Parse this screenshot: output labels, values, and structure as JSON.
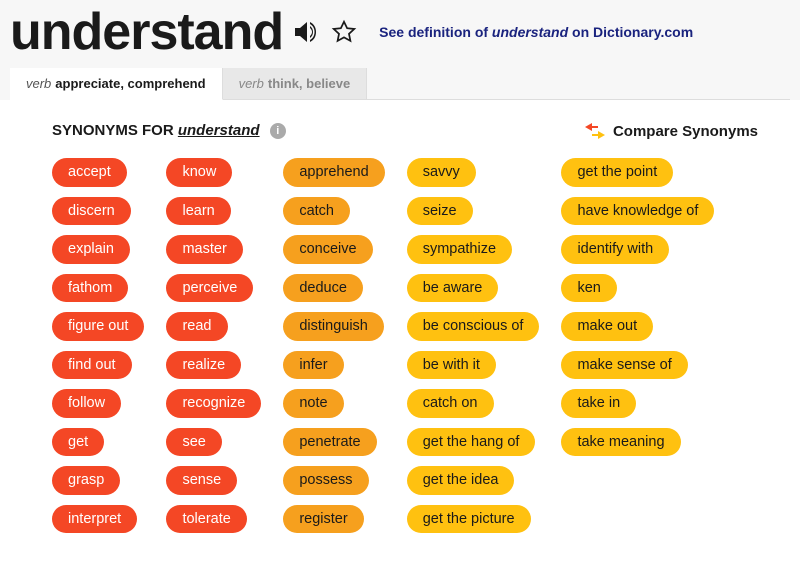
{
  "header": {
    "word": "understand",
    "def_link_prefix": "See definition of ",
    "def_link_word": "understand",
    "def_link_suffix": " on Dictionary.com"
  },
  "tabs": [
    {
      "pos": "verb",
      "sense": "appreciate, comprehend",
      "active": true
    },
    {
      "pos": "verb",
      "sense": "think, believe",
      "active": false
    }
  ],
  "section": {
    "label": "SYNONYMS FOR ",
    "word": "understand",
    "compare_label": "Compare Synonyms"
  },
  "colors": {
    "r1": "#f44725",
    "r2": "#f6a01e",
    "r3": "#ffc110",
    "compare_icon": "#f44725",
    "link": "#1a237e"
  },
  "columns": [
    {
      "rank": "r1",
      "items": [
        "accept",
        "discern",
        "explain",
        "fathom",
        "figure out",
        "find out",
        "follow",
        "get",
        "grasp",
        "interpret"
      ]
    },
    {
      "rank": "r1",
      "items": [
        "know",
        "learn",
        "master",
        "perceive",
        "read",
        "realize",
        "recognize",
        "see",
        "sense",
        "tolerate"
      ]
    },
    {
      "rank": "r2",
      "items": [
        "apprehend",
        "catch",
        "conceive",
        "deduce",
        "distinguish",
        "infer",
        "note",
        "penetrate",
        "possess",
        "register"
      ]
    },
    {
      "rank": "r3",
      "items": [
        "savvy",
        "seize",
        "sympathize",
        "be aware",
        "be conscious of",
        "be with it",
        "catch on",
        "get the hang of",
        "get the idea",
        "get the picture"
      ]
    },
    {
      "rank": "r3",
      "items": [
        "get the point",
        "have knowledge of",
        "identify with",
        "ken",
        "make out",
        "make sense of",
        "take in",
        "take meaning"
      ]
    }
  ]
}
